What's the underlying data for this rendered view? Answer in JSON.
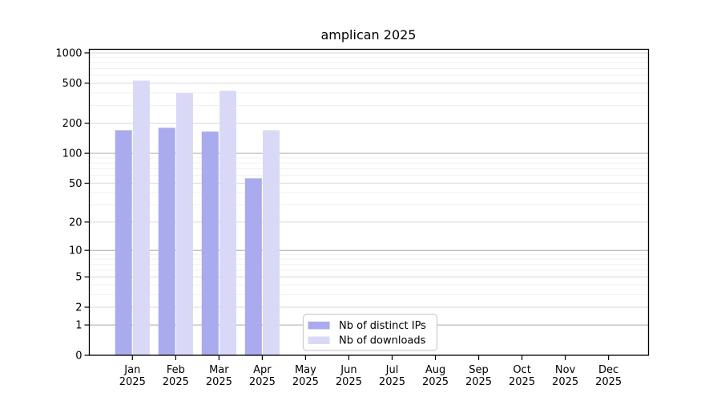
{
  "chart_data": {
    "type": "bar",
    "title": "amplican 2025",
    "y_scale": "log10(1+x)",
    "ylabel": "",
    "xlabel": "",
    "y_ticks": [
      0,
      1,
      2,
      5,
      10,
      20,
      50,
      100,
      200,
      500,
      1000
    ],
    "y_minor_gridlines": [
      3,
      4,
      6,
      7,
      8,
      9,
      30,
      40,
      60,
      70,
      80,
      90,
      300,
      400,
      600,
      700,
      800,
      900
    ],
    "emphasized_gridlines": [
      1,
      10,
      100
    ],
    "ylim": [
      0,
      1000
    ],
    "categories": [
      {
        "label": "Jan",
        "sublabel": "2025"
      },
      {
        "label": "Feb",
        "sublabel": "2025"
      },
      {
        "label": "Mar",
        "sublabel": "2025"
      },
      {
        "label": "Apr",
        "sublabel": "2025"
      },
      {
        "label": "May",
        "sublabel": "2025"
      },
      {
        "label": "Jun",
        "sublabel": "2025"
      },
      {
        "label": "Jul",
        "sublabel": "2025"
      },
      {
        "label": "Aug",
        "sublabel": "2025"
      },
      {
        "label": "Sep",
        "sublabel": "2025"
      },
      {
        "label": "Oct",
        "sublabel": "2025"
      },
      {
        "label": "Nov",
        "sublabel": "2025"
      },
      {
        "label": "Dec",
        "sublabel": "2025"
      }
    ],
    "series": [
      {
        "name": "Nb of distinct IPs",
        "color": "#aaaaee",
        "values": [
          170,
          180,
          165,
          56,
          null,
          null,
          null,
          null,
          null,
          null,
          null,
          null
        ]
      },
      {
        "name": "Nb of downloads",
        "color": "#d9d9f7",
        "values": [
          530,
          400,
          420,
          170,
          null,
          null,
          null,
          null,
          null,
          null,
          null,
          null
        ]
      }
    ],
    "legend": {
      "position": "inside-bottom-center",
      "background": "#ffffff",
      "border_color": "#cccccc"
    },
    "colors": {
      "background": "#ffffff",
      "axis": "#000000",
      "text": "#000000",
      "grid_major": "#d9d9d9",
      "grid_emphasis": "#b0b0b0",
      "grid_minor": "#efefef"
    }
  }
}
